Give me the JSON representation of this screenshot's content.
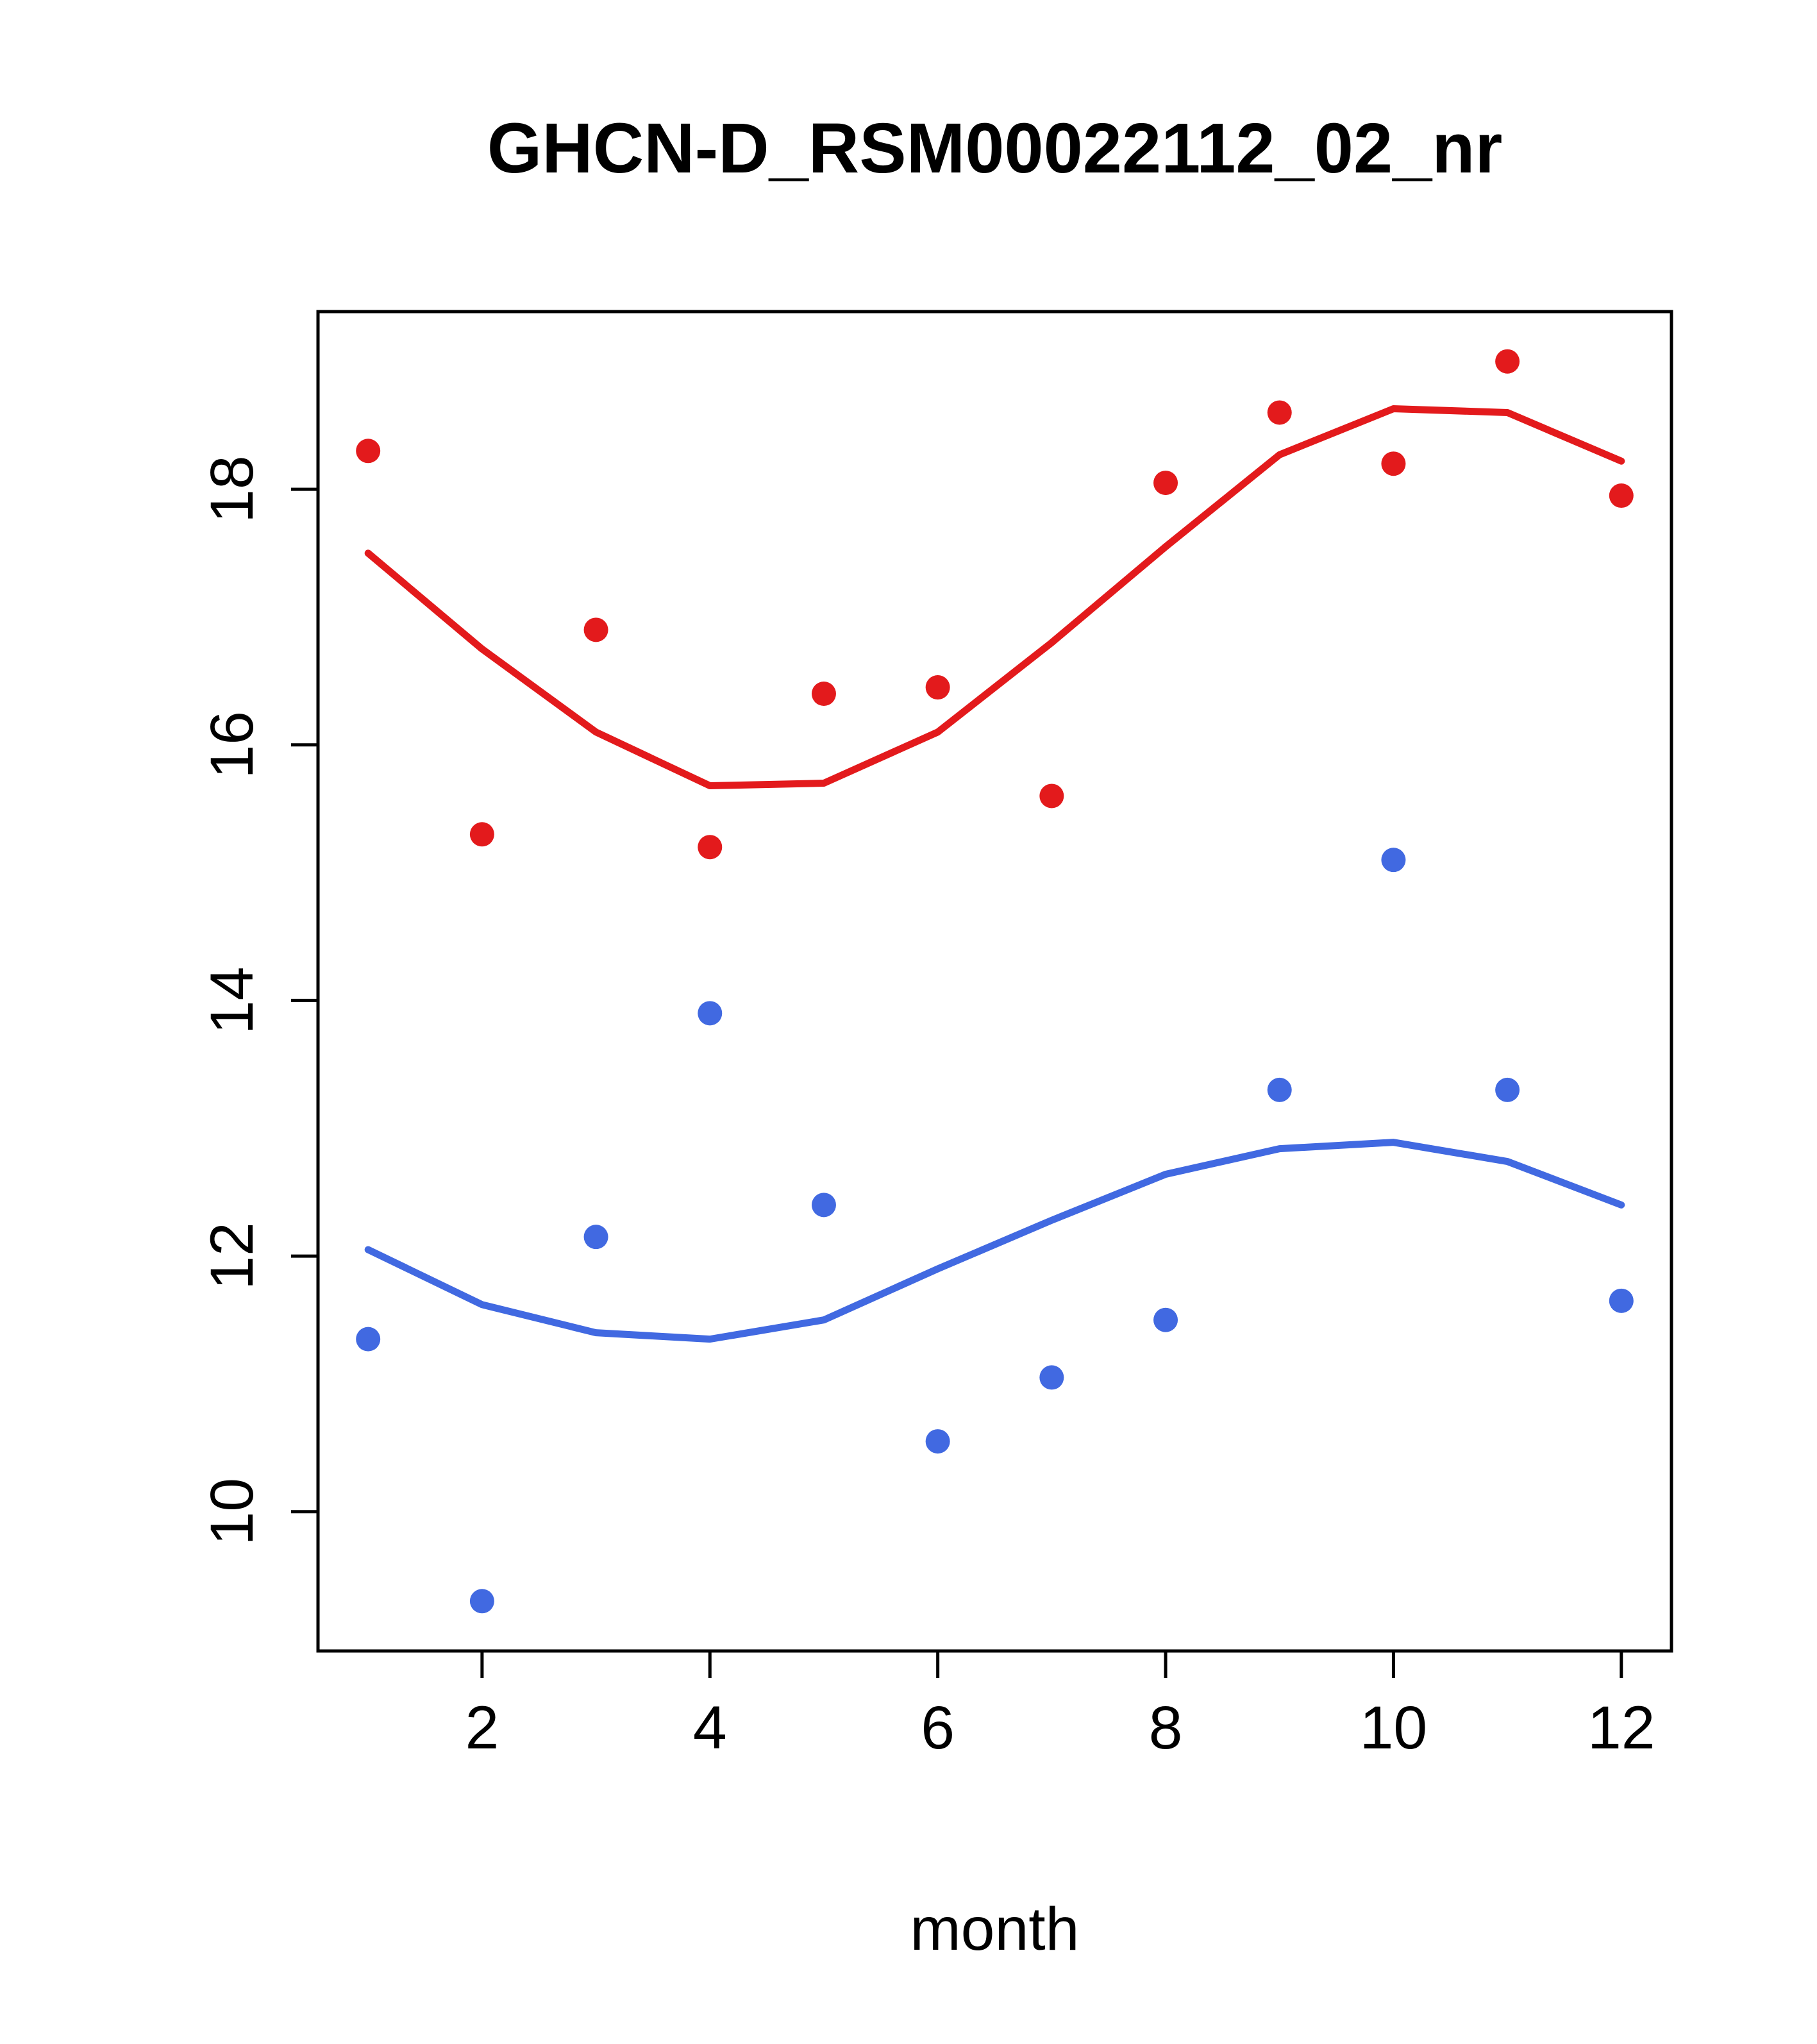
{
  "chart_data": {
    "type": "scatter",
    "title": "GHCN-D_RSM00022112_02_nr",
    "xlabel": "month",
    "ylabel": "",
    "x": [
      1,
      2,
      3,
      4,
      5,
      6,
      7,
      8,
      9,
      10,
      11,
      12
    ],
    "xlim": [
      0.56,
      12.44
    ],
    "ylim": [
      8.91,
      19.39
    ],
    "xticks": [
      2,
      4,
      6,
      8,
      10,
      12
    ],
    "yticks": [
      10,
      12,
      14,
      16,
      18
    ],
    "grid": false,
    "legend": "none",
    "colors": {
      "upper": "#e31a1c",
      "lower": "#4169e1",
      "axis": "#000000",
      "background": "#ffffff"
    },
    "series": [
      {
        "name": "upper-points",
        "kind": "points",
        "color": "#e31a1c",
        "values": [
          18.3,
          15.3,
          16.9,
          15.2,
          16.4,
          16.45,
          15.6,
          18.05,
          18.6,
          18.2,
          19.0,
          17.95
        ]
      },
      {
        "name": "upper-smooth-line",
        "kind": "line",
        "color": "#e31a1c",
        "values": [
          17.5,
          16.75,
          16.1,
          15.68,
          15.7,
          16.1,
          16.8,
          17.55,
          18.27,
          18.63,
          18.6,
          18.22
        ]
      },
      {
        "name": "lower-points",
        "kind": "points",
        "color": "#4169e1",
        "values": [
          11.35,
          9.3,
          12.15,
          13.9,
          12.4,
          10.55,
          11.05,
          11.5,
          13.3,
          15.1,
          13.3,
          11.65
        ]
      },
      {
        "name": "lower-smooth-line",
        "kind": "line",
        "color": "#4169e1",
        "values": [
          12.05,
          11.62,
          11.4,
          11.35,
          11.5,
          11.9,
          12.28,
          12.64,
          12.84,
          12.89,
          12.74,
          12.4
        ]
      }
    ]
  }
}
